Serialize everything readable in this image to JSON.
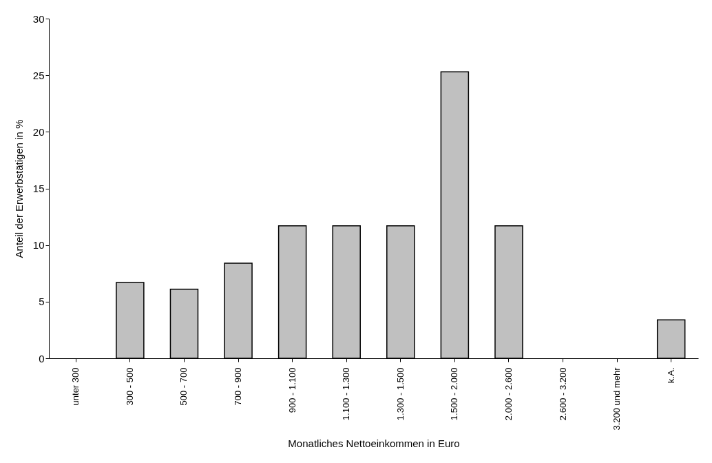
{
  "chart_data": {
    "type": "bar",
    "xlabel": "Monatliches Nettoeinkommen in Euro",
    "ylabel": "Anteil der Erwerbstätigen in %",
    "categories": [
      "unter 300",
      "300 - 500",
      "500 - 700",
      "700 - 900",
      "900 - 1.100",
      "1.100 - 1.300",
      "1.300 - 1.500",
      "1.500 - 2.000",
      "2.000 - 2.600",
      "2.600 - 3.200",
      "3.200 und mehr",
      "k.A."
    ],
    "values": [
      0,
      6.7,
      6.1,
      8.4,
      11.7,
      11.7,
      11.7,
      25.3,
      11.7,
      0,
      0,
      3.4
    ],
    "color": "#c0c0c0",
    "ylim": [
      0,
      30
    ],
    "yticks": [
      0,
      5,
      10,
      15,
      20,
      25,
      30
    ],
    "grid": false
  }
}
